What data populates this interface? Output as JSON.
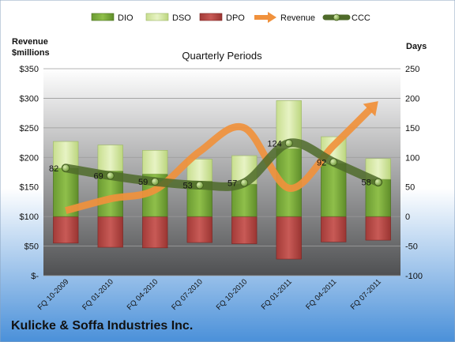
{
  "company": "Kulicke & Soffa Industries Inc.",
  "chart_data": {
    "type": "combo",
    "title": "Quarterly Periods",
    "left_axis_label": [
      "Revenue",
      "$millions"
    ],
    "right_axis_label": "Days",
    "left_ticks": [
      "$-",
      "$50",
      "$100",
      "$150",
      "$200",
      "$250",
      "$300",
      "$350"
    ],
    "left_ylim": [
      0,
      350
    ],
    "right_ylim": [
      -100,
      250
    ],
    "right_ticks": [
      "-100",
      "-50",
      "0",
      "50",
      "100",
      "150",
      "200",
      "250"
    ],
    "categories": [
      "FQ 10-2009",
      "FQ 01-2010",
      "FQ 04-2010",
      "FQ 07-2010",
      "FQ 10-2010",
      "FQ 01-2011",
      "FQ 04-2011",
      "FQ 07-2011"
    ],
    "legend": [
      "DIO",
      "DSO",
      "DPO",
      "Revenue",
      "CCC"
    ],
    "legend_position": "top",
    "series": [
      {
        "name": "DIO",
        "kind": "bar-positive",
        "axis": "days",
        "values": [
          82,
          77,
          72,
          60,
          55,
          115,
          90,
          63
        ],
        "color": "#6aa830"
      },
      {
        "name": "DSO",
        "kind": "bar-positive-stacked",
        "axis": "days",
        "values": [
          45,
          44,
          40,
          37,
          48,
          81,
          45,
          35
        ],
        "color": "#d6eaa6"
      },
      {
        "name": "DPO",
        "kind": "bar-negative",
        "axis": "days",
        "values": [
          -45,
          -52,
          -53,
          -44,
          -46,
          -72,
          -43,
          -40
        ],
        "color": "#c0504d"
      },
      {
        "name": "Revenue",
        "kind": "arrow-line",
        "axis": "revenue",
        "values": [
          110,
          130,
          145,
          210,
          250,
          148,
          220,
          295
        ],
        "color": "#f0913c"
      },
      {
        "name": "CCC",
        "kind": "line-markers",
        "axis": "days",
        "values": [
          82,
          69,
          59,
          53,
          57,
          124,
          92,
          58
        ],
        "labels": [
          "82",
          "69",
          "59",
          "53",
          "57",
          "124",
          "92",
          "58"
        ],
        "color": "#4f7a28"
      }
    ],
    "colors": {
      "plot_top": "#ffffff",
      "plot_bottom": "#4f5052",
      "bg_top": "#ffffff",
      "bg_bottom": "#4a90d9"
    },
    "grid": true
  }
}
